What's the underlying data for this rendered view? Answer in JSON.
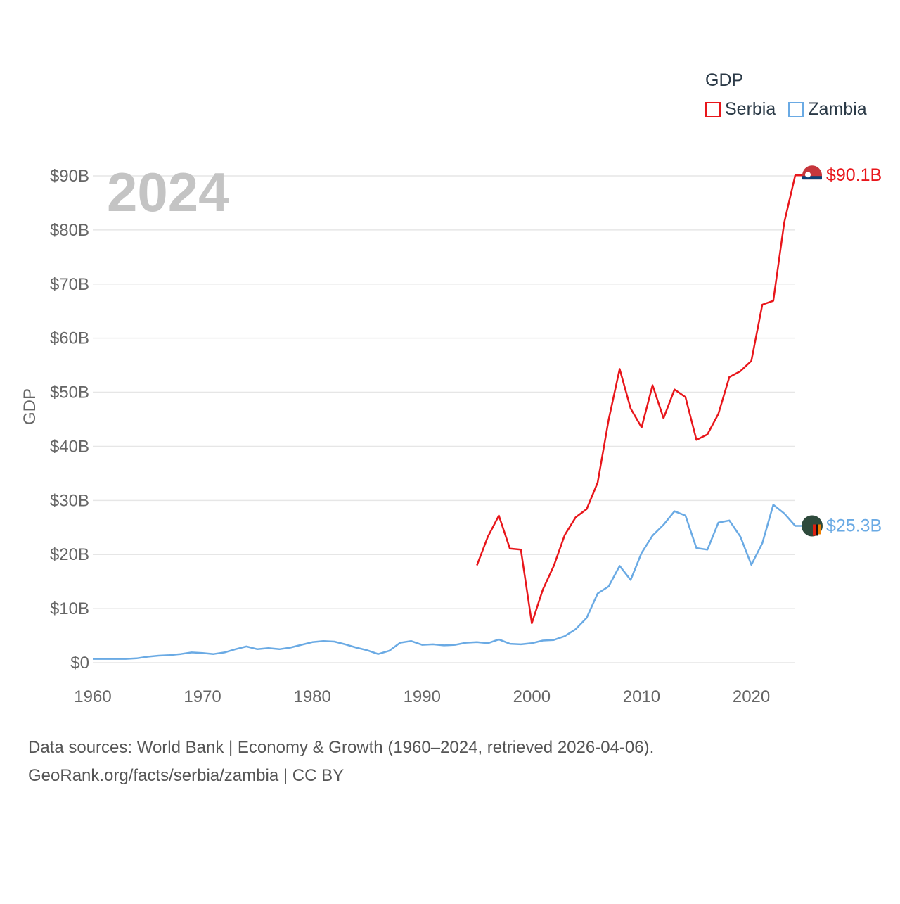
{
  "chart_data": {
    "type": "line",
    "year_label": "2024",
    "ylabel": "GDP",
    "ylim": [
      0,
      90
    ],
    "y_ticks": [
      {
        "value": 0,
        "label": "$0"
      },
      {
        "value": 10,
        "label": "$10B"
      },
      {
        "value": 20,
        "label": "$20B"
      },
      {
        "value": 30,
        "label": "$30B"
      },
      {
        "value": 40,
        "label": "$40B"
      },
      {
        "value": 50,
        "label": "$50B"
      },
      {
        "value": 60,
        "label": "$60B"
      },
      {
        "value": 70,
        "label": "$70B"
      },
      {
        "value": 80,
        "label": "$80B"
      },
      {
        "value": 90,
        "label": "$90B"
      }
    ],
    "xlim": [
      1960,
      2024
    ],
    "x_ticks": [
      {
        "value": 1960,
        "label": "1960"
      },
      {
        "value": 1970,
        "label": "1970"
      },
      {
        "value": 1980,
        "label": "1980"
      },
      {
        "value": 1990,
        "label": "1990"
      },
      {
        "value": 2000,
        "label": "2000"
      },
      {
        "value": 2010,
        "label": "2010"
      },
      {
        "value": 2020,
        "label": "2020"
      }
    ],
    "legend": {
      "title": "GDP",
      "position": "top-right"
    },
    "series": [
      {
        "name": "Serbia",
        "color": "#e8161b",
        "end_label": "$90.1B",
        "x": [
          1995,
          1996,
          1997,
          1998,
          1999,
          2000,
          2001,
          2002,
          2003,
          2004,
          2005,
          2006,
          2007,
          2008,
          2009,
          2010,
          2011,
          2012,
          2013,
          2014,
          2015,
          2016,
          2017,
          2018,
          2019,
          2020,
          2021,
          2022,
          2023,
          2024
        ],
        "values": [
          18.0,
          23.3,
          27.2,
          21.1,
          20.9,
          7.3,
          13.5,
          17.9,
          23.6,
          26.9,
          28.4,
          33.3,
          44.9,
          54.3,
          47.0,
          43.5,
          51.3,
          45.2,
          50.5,
          49.1,
          41.2,
          42.2,
          46.0,
          52.8,
          53.9,
          55.8,
          66.2,
          66.9,
          81.4,
          90.1
        ]
      },
      {
        "name": "Zambia",
        "color": "#6aaae4",
        "end_label": "$25.3B",
        "x": [
          1960,
          1961,
          1962,
          1963,
          1964,
          1965,
          1966,
          1967,
          1968,
          1969,
          1970,
          1971,
          1972,
          1973,
          1974,
          1975,
          1976,
          1977,
          1978,
          1979,
          1980,
          1981,
          1982,
          1983,
          1984,
          1985,
          1986,
          1987,
          1988,
          1989,
          1990,
          1991,
          1992,
          1993,
          1994,
          1995,
          1996,
          1997,
          1998,
          1999,
          2000,
          2001,
          2002,
          2003,
          2004,
          2005,
          2006,
          2007,
          2008,
          2009,
          2010,
          2011,
          2012,
          2013,
          2014,
          2015,
          2016,
          2017,
          2018,
          2019,
          2020,
          2021,
          2022,
          2023,
          2024
        ],
        "values": [
          0.7,
          0.7,
          0.7,
          0.7,
          0.8,
          1.1,
          1.3,
          1.4,
          1.6,
          1.9,
          1.8,
          1.6,
          1.9,
          2.5,
          3.0,
          2.5,
          2.7,
          2.5,
          2.8,
          3.3,
          3.8,
          4.0,
          3.9,
          3.4,
          2.8,
          2.3,
          1.6,
          2.2,
          3.7,
          4.0,
          3.3,
          3.4,
          3.2,
          3.3,
          3.7,
          3.8,
          3.6,
          4.3,
          3.5,
          3.4,
          3.6,
          4.1,
          4.2,
          4.9,
          6.2,
          8.3,
          12.8,
          14.1,
          17.9,
          15.3,
          20.3,
          23.5,
          25.5,
          28.0,
          27.2,
          21.2,
          20.9,
          25.9,
          26.3,
          23.3,
          18.1,
          22.1,
          29.2,
          27.6,
          25.3
        ]
      }
    ],
    "source_line": "Data sources: World Bank | Economy & Growth (1960–2024, retrieved 2026-04-06).",
    "credit_line": "GeoRank.org/facts/serbia/zambia | CC BY"
  },
  "colors": {
    "serbia": "#e8161b",
    "zambia": "#6aaae4",
    "grid": "#e6e6e6",
    "axis_text": "#666666",
    "year_text": "#c4c4c4"
  }
}
